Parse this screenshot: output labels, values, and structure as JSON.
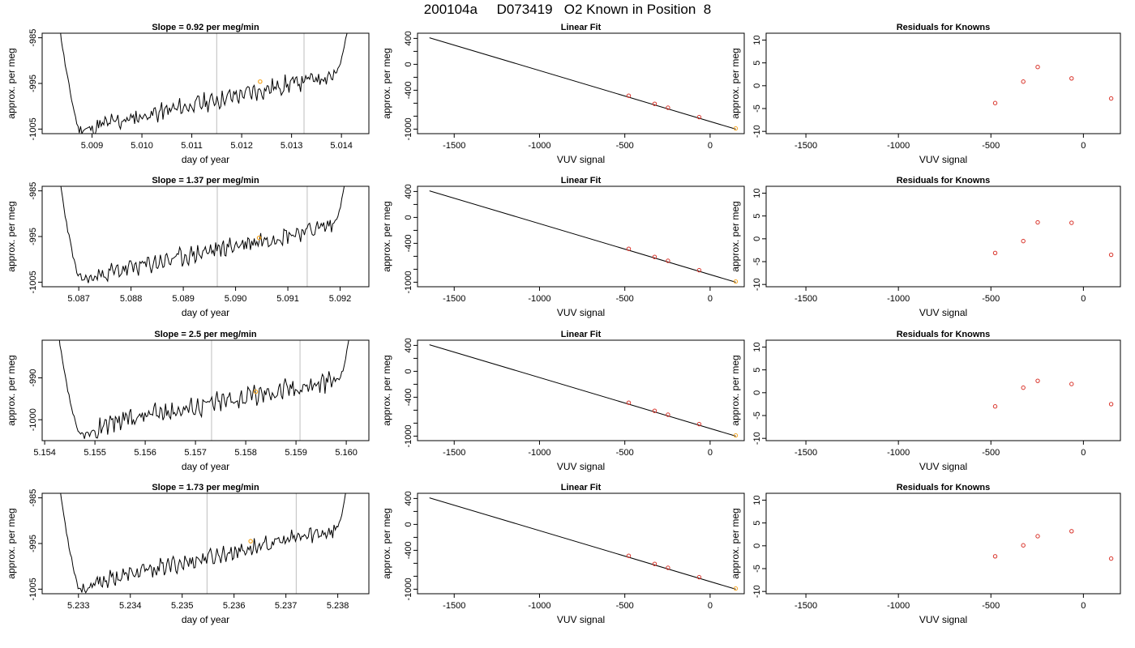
{
  "header": {
    "title": "200104a     D073419   O2 Known in Position  8"
  },
  "chart_data": [
    {
      "type": "line",
      "kind": "trace",
      "title": "Slope =  0.92  per meg/min",
      "xlabel": "day of year",
      "ylabel": "approx. per meg",
      "xlim": [
        5.008,
        5.01455
      ],
      "ylim": [
        -1006.0,
        -984.0
      ],
      "xticks": [
        5.009,
        5.01,
        5.011,
        5.012,
        5.013,
        5.014
      ],
      "yticks": [
        -1005,
        -995,
        -985
      ],
      "vlines": [
        5.0115,
        5.01325
      ],
      "marker": {
        "x": 5.01237,
        "y": -994.6
      },
      "trace_start": -960,
      "trace_drop_to": 0.13,
      "trace_bottom": -1005.0,
      "trend": [
        -1004.5,
        -993.0
      ],
      "trend_end": 0.91,
      "noise": 1.6,
      "seed": 11,
      "colors": {
        "line": "#000000",
        "vline": "#c8c8c8",
        "marker": "#f5a623"
      }
    },
    {
      "type": "scatter",
      "kind": "fit",
      "title": "Linear Fit",
      "xlabel": "VUV signal",
      "ylabel": "approx. per meg",
      "xlim": [
        -1715,
        200
      ],
      "ylim": [
        -1070,
        480
      ],
      "xticks": [
        -1500,
        -1000,
        -500,
        0
      ],
      "yticks": [
        -1000,
        -800,
        -600,
        -400,
        -200,
        0,
        200,
        400
      ],
      "ylabeled": [
        -1000,
        -400,
        0,
        400
      ],
      "line": {
        "x": [
          -1645,
          150
        ],
        "y": [
          410,
          -1000
        ]
      },
      "x": [
        -477,
        -325,
        -247,
        -64,
        150
      ],
      "y": [
        -485,
        -610,
        -670,
        -815,
        -990
      ],
      "colors": {
        "line": "#000000",
        "point": "#d9342b",
        "last_point": "#f5a623"
      }
    },
    {
      "type": "scatter",
      "kind": "resid",
      "title": "Residuals for Knowns",
      "xlabel": "VUV signal",
      "ylabel": "approx. per meg",
      "xlim": [
        -1715,
        200
      ],
      "ylim": [
        -10.5,
        11.5
      ],
      "xticks": [
        -1500,
        -1000,
        -500,
        0
      ],
      "yticks": [
        -10,
        -5,
        0,
        5,
        10
      ],
      "x": [
        -477,
        -325,
        -247,
        -64,
        150
      ],
      "y": [
        -3.8,
        0.9,
        4.1,
        1.6,
        -2.8
      ],
      "colors": {
        "point": "#d9342b"
      }
    },
    {
      "type": "line",
      "kind": "trace",
      "title": "Slope =  1.37  per meg/min",
      "xlabel": "day of year",
      "ylabel": "approx. per meg",
      "xlim": [
        5.0863,
        5.09255
      ],
      "ylim": [
        -1006.0,
        -984.0
      ],
      "xticks": [
        5.087,
        5.088,
        5.089,
        5.09,
        5.091,
        5.092
      ],
      "yticks": [
        -1005,
        -995,
        -985
      ],
      "vlines": [
        5.08965,
        5.09137
      ],
      "marker": {
        "x": 5.09045,
        "y": -995.3
      },
      "trace_start": -960,
      "trace_drop_to": 0.14,
      "trace_bottom": -1004.2,
      "trend": [
        -1003.5,
        -992.5
      ],
      "trend_end": 0.9,
      "noise": 1.6,
      "seed": 23,
      "colors": {
        "line": "#000000",
        "vline": "#c8c8c8",
        "marker": "#f5a623"
      }
    },
    {
      "type": "scatter",
      "kind": "fit",
      "title": "Linear Fit",
      "xlabel": "VUV signal",
      "ylabel": "approx. per meg",
      "xlim": [
        -1715,
        200
      ],
      "ylim": [
        -1070,
        480
      ],
      "xticks": [
        -1500,
        -1000,
        -500,
        0
      ],
      "yticks": [
        -1000,
        -800,
        -600,
        -400,
        -200,
        0,
        200,
        400
      ],
      "ylabeled": [
        -1000,
        -400,
        0,
        400
      ],
      "line": {
        "x": [
          -1645,
          150
        ],
        "y": [
          410,
          -1000
        ]
      },
      "x": [
        -477,
        -325,
        -247,
        -64,
        150
      ],
      "y": [
        -485,
        -610,
        -670,
        -815,
        -990
      ],
      "colors": {
        "line": "#000000",
        "point": "#d9342b",
        "last_point": "#f5a623"
      }
    },
    {
      "type": "scatter",
      "kind": "resid",
      "title": "Residuals for Knowns",
      "xlabel": "VUV signal",
      "ylabel": "approx. per meg",
      "xlim": [
        -1715,
        200
      ],
      "ylim": [
        -10.5,
        11.5
      ],
      "xticks": [
        -1500,
        -1000,
        -500,
        0
      ],
      "yticks": [
        -10,
        -5,
        0,
        5,
        10
      ],
      "x": [
        -477,
        -325,
        -247,
        -64,
        150
      ],
      "y": [
        -3.1,
        -0.5,
        3.6,
        3.5,
        -3.5
      ],
      "colors": {
        "point": "#d9342b"
      }
    },
    {
      "type": "line",
      "kind": "trace",
      "title": "Slope =  2.5  per meg/min",
      "xlabel": "day of year",
      "ylabel": "approx. per meg",
      "xlim": [
        5.15395,
        5.16045
      ],
      "ylim": [
        -1005.0,
        -981.0
      ],
      "xticks": [
        5.154,
        5.155,
        5.156,
        5.157,
        5.158,
        5.159,
        5.16
      ],
      "yticks": [
        -1000,
        -990
      ],
      "vlines": [
        5.15732,
        5.15908
      ],
      "marker": {
        "x": 5.1582,
        "y": -993.3
      },
      "trace_start": -960,
      "trace_drop_to": 0.15,
      "trace_bottom": -1003.5,
      "trend": [
        -1001.0,
        -990.5
      ],
      "trend_end": 0.92,
      "noise": 2.0,
      "seed": 37,
      "colors": {
        "line": "#000000",
        "vline": "#c8c8c8",
        "marker": "#f5a623"
      }
    },
    {
      "type": "scatter",
      "kind": "fit",
      "title": "Linear Fit",
      "xlabel": "VUV signal",
      "ylabel": "approx. per meg",
      "xlim": [
        -1715,
        200
      ],
      "ylim": [
        -1070,
        480
      ],
      "xticks": [
        -1500,
        -1000,
        -500,
        0
      ],
      "yticks": [
        -1000,
        -800,
        -600,
        -400,
        -200,
        0,
        200,
        400
      ],
      "ylabeled": [
        -1000,
        -400,
        0,
        400
      ],
      "line": {
        "x": [
          -1645,
          150
        ],
        "y": [
          410,
          -1000
        ]
      },
      "x": [
        -477,
        -325,
        -247,
        -64,
        150
      ],
      "y": [
        -485,
        -610,
        -670,
        -815,
        -990
      ],
      "colors": {
        "line": "#000000",
        "point": "#d9342b",
        "last_point": "#f5a623"
      }
    },
    {
      "type": "scatter",
      "kind": "resid",
      "title": "Residuals for Knowns",
      "xlabel": "VUV signal",
      "ylabel": "approx. per meg",
      "xlim": [
        -1715,
        200
      ],
      "ylim": [
        -10.5,
        11.5
      ],
      "xticks": [
        -1500,
        -1000,
        -500,
        0
      ],
      "yticks": [
        -10,
        -5,
        0,
        5,
        10
      ],
      "x": [
        -477,
        -325,
        -247,
        -64,
        150
      ],
      "y": [
        -3.0,
        1.1,
        2.6,
        1.9,
        -2.5
      ],
      "colors": {
        "point": "#d9342b"
      }
    },
    {
      "type": "line",
      "kind": "trace",
      "title": "Slope =  1.73  per meg/min",
      "xlabel": "day of year",
      "ylabel": "approx. per meg",
      "xlim": [
        5.2323,
        5.2386
      ],
      "ylim": [
        -1006.0,
        -984.0
      ],
      "xticks": [
        5.233,
        5.234,
        5.235,
        5.236,
        5.237,
        5.238
      ],
      "yticks": [
        -1005,
        -995,
        -985
      ],
      "vlines": [
        5.23548,
        5.2372
      ],
      "marker": {
        "x": 5.23632,
        "y": -994.5
      },
      "trace_start": -960,
      "trace_drop_to": 0.13,
      "trace_bottom": -1004.8,
      "trend": [
        -1003.5,
        -992.0
      ],
      "trend_end": 0.91,
      "noise": 1.5,
      "seed": 53,
      "colors": {
        "line": "#000000",
        "vline": "#c8c8c8",
        "marker": "#f5a623"
      }
    },
    {
      "type": "scatter",
      "kind": "fit",
      "title": "Linear Fit",
      "xlabel": "VUV signal",
      "ylabel": "approx. per meg",
      "xlim": [
        -1715,
        200
      ],
      "ylim": [
        -1070,
        480
      ],
      "xticks": [
        -1500,
        -1000,
        -500,
        0
      ],
      "yticks": [
        -1000,
        -800,
        -600,
        -400,
        -200,
        0,
        200,
        400
      ],
      "ylabeled": [
        -1000,
        -400,
        0,
        400
      ],
      "line": {
        "x": [
          -1645,
          150
        ],
        "y": [
          410,
          -1000
        ]
      },
      "x": [
        -477,
        -325,
        -247,
        -64,
        150
      ],
      "y": [
        -485,
        -610,
        -670,
        -815,
        -990
      ],
      "colors": {
        "line": "#000000",
        "point": "#d9342b",
        "last_point": "#f5a623"
      }
    },
    {
      "type": "scatter",
      "kind": "resid",
      "title": "Residuals for Knowns",
      "xlabel": "VUV signal",
      "ylabel": "approx. per meg",
      "xlim": [
        -1715,
        200
      ],
      "ylim": [
        -10.5,
        11.5
      ],
      "xticks": [
        -1500,
        -1000,
        -500,
        0
      ],
      "yticks": [
        -10,
        -5,
        0,
        5,
        10
      ],
      "x": [
        -477,
        -325,
        -247,
        -64,
        150
      ],
      "y": [
        -2.3,
        0.1,
        2.1,
        3.2,
        -2.8
      ],
      "colors": {
        "point": "#d9342b"
      }
    }
  ]
}
